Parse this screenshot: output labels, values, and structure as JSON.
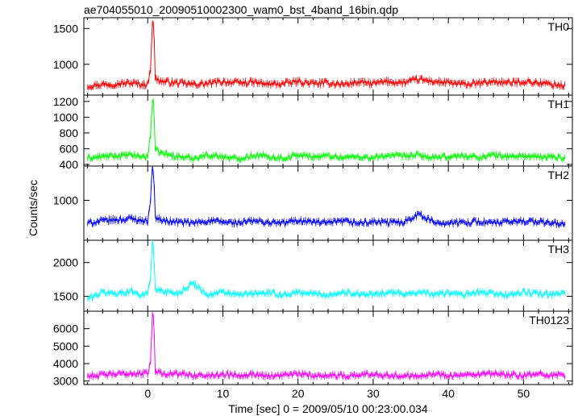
{
  "chart_data": {
    "type": "line",
    "title": "ae704055010_20090510002300_wam0_bst_4band_16bin.qdp",
    "xlabel": "Time [sec] 0 = 2009/05/10 00:23:00.034",
    "ylabel": "Counts/sec",
    "xlim": [
      -8.5,
      56.5
    ],
    "x_ticks": [
      0,
      10,
      20,
      30,
      40,
      50
    ],
    "x_tick_labels": [
      "0",
      "10",
      "20",
      "30",
      "40",
      "50"
    ],
    "error_bars": true,
    "panels": [
      {
        "name": "TH0",
        "color": "#ff0000",
        "ylim": [
          570,
          1650
        ],
        "y_ticks": [
          1000,
          1500
        ],
        "y_tick_labels": [
          "1000",
          "1500"
        ],
        "x": [
          -8,
          -6,
          -4,
          -2,
          -1,
          0,
          0.4,
          0.6,
          0.8,
          1,
          2,
          4,
          6,
          8,
          10,
          12,
          14,
          16,
          18,
          20,
          22,
          24,
          26,
          28,
          30,
          32,
          34,
          36,
          38,
          40,
          42,
          44,
          46,
          48,
          50,
          52,
          54,
          55.5
        ],
        "values": [
          700,
          720,
          730,
          740,
          720,
          720,
          950,
          1610,
          1580,
          800,
          760,
          740,
          720,
          730,
          760,
          740,
          750,
          720,
          730,
          760,
          730,
          740,
          720,
          750,
          730,
          760,
          740,
          790,
          760,
          740,
          720,
          730,
          760,
          740,
          760,
          740,
          720,
          700
        ]
      },
      {
        "name": "TH1",
        "color": "#00ff00",
        "ylim": [
          380,
          1280
        ],
        "y_ticks": [
          400,
          600,
          800,
          1000,
          1200
        ],
        "y_tick_labels": [
          "400",
          "600",
          "800",
          "1000",
          "1200"
        ],
        "x": [
          -8,
          -6,
          -4,
          -2,
          -1,
          0,
          0.4,
          0.6,
          0.8,
          1,
          2,
          4,
          6,
          8,
          10,
          12,
          14,
          16,
          18,
          20,
          22,
          24,
          26,
          28,
          30,
          32,
          34,
          36,
          38,
          40,
          42,
          44,
          46,
          48,
          50,
          52,
          54,
          55.5
        ],
        "values": [
          480,
          500,
          510,
          520,
          500,
          500,
          800,
          1220,
          1200,
          580,
          540,
          500,
          480,
          520,
          500,
          470,
          520,
          500,
          480,
          520,
          500,
          510,
          490,
          500,
          480,
          520,
          500,
          520,
          480,
          500,
          510,
          490,
          520,
          500,
          510,
          490,
          500,
          480
        ]
      },
      {
        "name": "TH2",
        "color": "#0000ff",
        "ylim": [
          300,
          1600
        ],
        "y_ticks": [
          1000
        ],
        "y_tick_labels": [
          "1000"
        ],
        "x": [
          -8,
          -6,
          -4,
          -2,
          -1,
          0,
          0.4,
          0.6,
          0.8,
          1,
          2,
          4,
          6,
          8,
          10,
          12,
          14,
          16,
          18,
          20,
          22,
          24,
          26,
          28,
          30,
          32,
          34,
          36,
          38,
          40,
          42,
          44,
          46,
          48,
          50,
          52,
          54,
          55.5
        ],
        "values": [
          600,
          640,
          660,
          680,
          650,
          640,
          1050,
          1580,
          1500,
          700,
          640,
          620,
          600,
          640,
          620,
          600,
          640,
          610,
          600,
          650,
          620,
          600,
          630,
          600,
          620,
          610,
          620,
          760,
          620,
          600,
          610,
          630,
          600,
          620,
          640,
          620,
          600,
          580
        ]
      },
      {
        "name": "TH3",
        "color": "#00ffff",
        "ylim": [
          1280,
          2330
        ],
        "y_ticks": [
          1500,
          2000
        ],
        "y_tick_labels": [
          "1500",
          "2000"
        ],
        "x": [
          -8,
          -6,
          -4,
          -2,
          -1,
          0,
          0.4,
          0.6,
          0.8,
          1,
          2,
          4,
          6,
          8,
          10,
          12,
          14,
          16,
          18,
          20,
          22,
          24,
          26,
          28,
          30,
          32,
          34,
          36,
          38,
          40,
          42,
          44,
          46,
          48,
          50,
          52,
          54,
          55.5
        ],
        "values": [
          1460,
          1560,
          1540,
          1580,
          1520,
          1540,
          1800,
          2320,
          2200,
          1600,
          1580,
          1540,
          1700,
          1520,
          1560,
          1520,
          1540,
          1550,
          1520,
          1560,
          1540,
          1520,
          1560,
          1540,
          1520,
          1560,
          1540,
          1560,
          1530,
          1550,
          1520,
          1560,
          1540,
          1520,
          1560,
          1540,
          1520,
          1560
        ]
      },
      {
        "name": "TH0123",
        "color": "#ff00ff",
        "ylim": [
          2800,
          7000
        ],
        "y_ticks": [
          3000,
          4000,
          5000,
          6000
        ],
        "y_tick_labels": [
          "3000",
          "4000",
          "5000",
          "6000"
        ],
        "x": [
          -8,
          -6,
          -4,
          -2,
          -1,
          0,
          0.4,
          0.6,
          0.8,
          1,
          2,
          4,
          6,
          8,
          10,
          12,
          14,
          16,
          18,
          20,
          22,
          24,
          26,
          28,
          30,
          32,
          34,
          36,
          38,
          40,
          42,
          44,
          46,
          48,
          50,
          52,
          54,
          55.5
        ],
        "values": [
          3300,
          3350,
          3400,
          3450,
          3400,
          3450,
          4200,
          6800,
          6600,
          3600,
          3450,
          3400,
          3350,
          3300,
          3400,
          3350,
          3400,
          3300,
          3350,
          3400,
          3300,
          3350,
          3300,
          3350,
          3400,
          3350,
          3300,
          3350,
          3400,
          3350,
          3300,
          3350,
          3400,
          3350,
          3300,
          3400,
          3350,
          3300
        ]
      }
    ]
  }
}
